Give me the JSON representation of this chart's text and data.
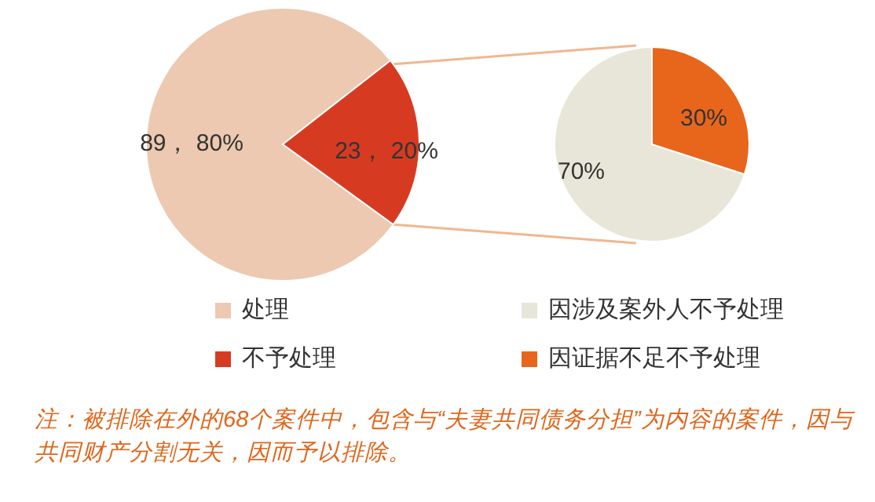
{
  "chart_data": [
    {
      "type": "pie",
      "categories": [
        "处理",
        "不予处理"
      ],
      "values": [
        89,
        23
      ],
      "colors": [
        "#ecc9b0",
        "#d63b22"
      ],
      "value_labels": [
        "89， 80%",
        "23， 20%"
      ],
      "legend": "bottom",
      "annotations": [
        "注：被排除在外的68个案件中，包含与“夫妻共同债务分担”为内容的案件，因与共同财产分割无关，因而予以排除。"
      ]
    },
    {
      "type": "pie",
      "categories": [
        "因涉及案外人不予处理",
        "因证据不足不予处理"
      ],
      "values": [
        70,
        30
      ],
      "colors": [
        "#e8e6d9",
        "#e8661b"
      ],
      "value_labels": [
        "70%",
        "30%"
      ],
      "legend": "bottom"
    }
  ]
}
